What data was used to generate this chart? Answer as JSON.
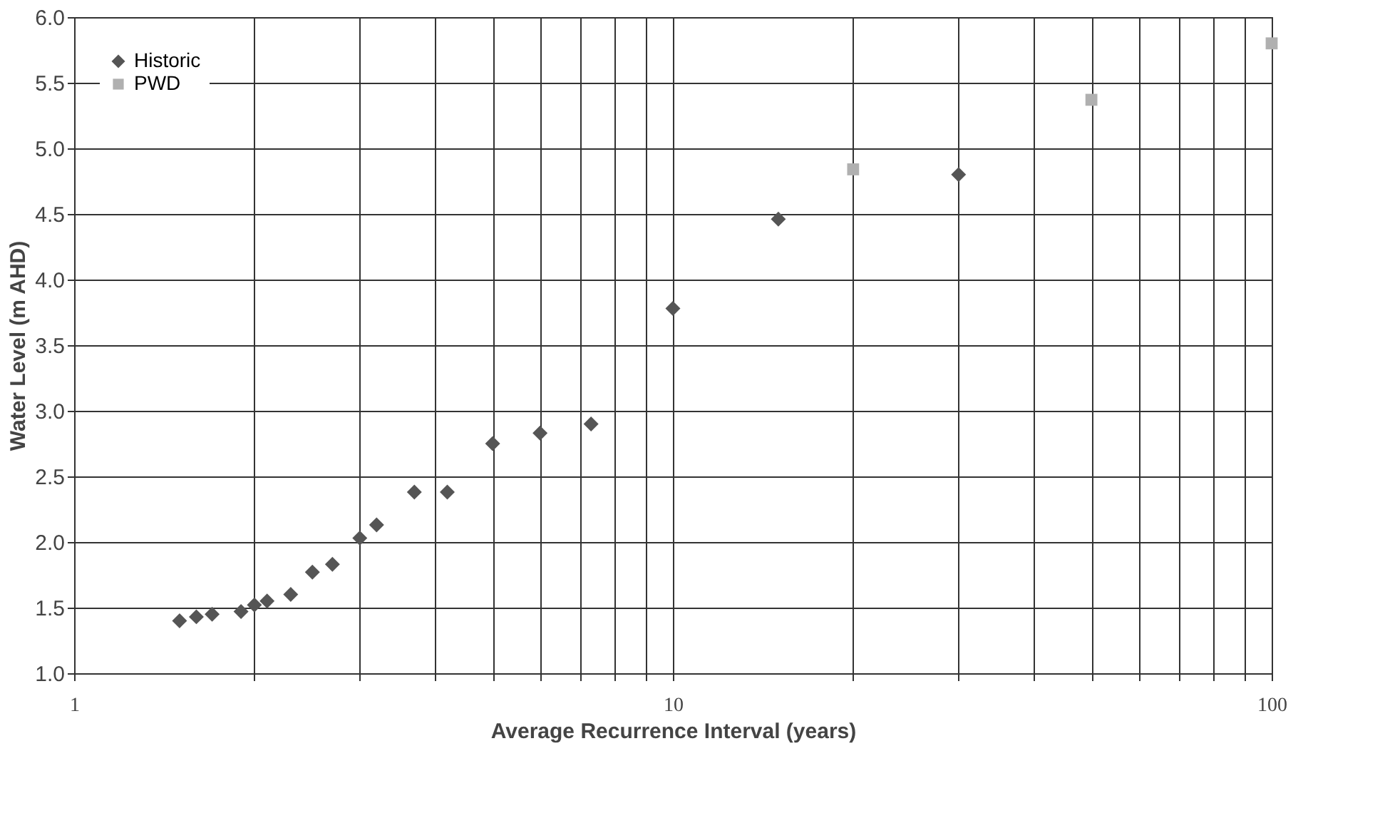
{
  "chart_data": {
    "type": "scatter",
    "xlabel": "Average Recurrence Interval (years)",
    "ylabel": "Water Level (m AHD)",
    "log": "x",
    "xlim": [
      1,
      100
    ],
    "ylim": [
      1,
      6
    ],
    "xticks": [
      1,
      {
        "value": 2,
        "label": null
      },
      {
        "value": 3,
        "label": null
      },
      {
        "value": 4,
        "label": null
      },
      {
        "value": 5,
        "label": null
      },
      {
        "value": 6,
        "label": null
      },
      {
        "value": 7,
        "label": null
      },
      {
        "value": 8,
        "label": null
      },
      {
        "value": 9,
        "label": null
      },
      10,
      {
        "value": 20,
        "label": null
      },
      {
        "value": 30,
        "label": null
      },
      {
        "value": 40,
        "label": null
      },
      {
        "value": 50,
        "label": null
      },
      {
        "value": 60,
        "label": null
      },
      {
        "value": 70,
        "label": null
      },
      {
        "value": 80,
        "label": null
      },
      {
        "value": 90,
        "label": null
      },
      100
    ],
    "yticks": [
      {
        "value": 1,
        "label": "1.0"
      },
      1.5,
      {
        "value": 2,
        "label": "2.0"
      },
      2.5,
      {
        "value": 3,
        "label": "3.0"
      },
      3.5,
      {
        "value": 4,
        "label": "4.0"
      },
      4.5,
      {
        "value": 5,
        "label": "5.0"
      },
      5.5,
      {
        "value": 6,
        "label": "6.0"
      }
    ],
    "grid": true,
    "legend": "top left",
    "series": [
      {
        "name": "Historic",
        "color": "#555555",
        "marker": "diamond",
        "x": [
          1.5,
          1.6,
          1.7,
          1.9,
          2.0,
          2.1,
          2.3,
          2.5,
          2.7,
          3,
          3.2,
          3.7,
          4.2,
          5,
          6,
          7.3,
          10,
          15,
          30
        ],
        "values": [
          1.4,
          1.43,
          1.45,
          1.47,
          1.52,
          1.55,
          1.6,
          1.77,
          1.83,
          2.03,
          2.13,
          2.38,
          2.38,
          2.75,
          2.83,
          2.9,
          3.78,
          4.46,
          4.8
        ]
      },
      {
        "name": "PWD",
        "color": "#b0b0b0",
        "marker": "square",
        "x": [
          20,
          50,
          100
        ],
        "values": [
          4.84,
          5.37,
          5.8
        ]
      }
    ]
  }
}
